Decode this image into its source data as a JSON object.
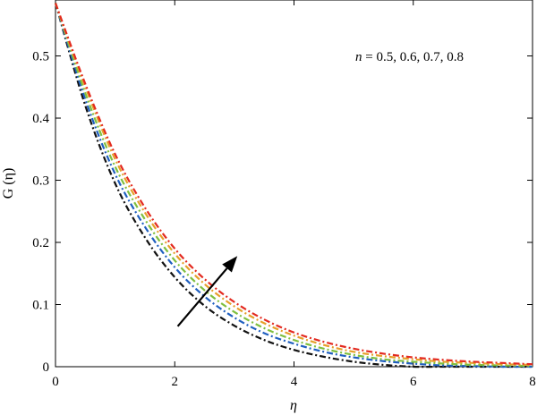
{
  "chart_data": {
    "type": "line",
    "title": "",
    "xlabel": "η",
    "ylabel": "G (η)",
    "xlim": [
      0,
      8
    ],
    "ylim": [
      0,
      0.59
    ],
    "xticks": [
      0,
      2,
      4,
      6,
      8
    ],
    "yticks": [
      0,
      0.1,
      0.2,
      0.3,
      0.4,
      0.5
    ],
    "xtick_labels": [
      "0",
      "2",
      "4",
      "6",
      "8"
    ],
    "ytick_labels": [
      "0",
      "0.1",
      "0.2",
      "0.3",
      "0.4",
      "0.5"
    ],
    "grid": false,
    "legend": "none",
    "annotation": {
      "text_var": "n",
      "text_rest": " = 0.5, 0.6, 0.7, 0.8"
    },
    "arrow": {
      "from": [
        2.05,
        0.065
      ],
      "to": [
        3.05,
        0.178
      ]
    },
    "x": [
      0,
      0.5,
      1,
      1.5,
      2,
      2.5,
      3,
      3.5,
      4,
      4.5,
      5,
      5.5,
      6,
      6.5,
      7,
      7.5,
      8
    ],
    "series": [
      {
        "color": "#111111",
        "dash": "7 3 2 3",
        "values": [
          0.585,
          0.42,
          0.295,
          0.208,
          0.144,
          0.098,
          0.066,
          0.043,
          0.027,
          0.016,
          0.008,
          0.003,
          0.0,
          0.0,
          0.0,
          0.0,
          0.0
        ]
      },
      {
        "color": "#1f5fbf",
        "dash": "7 3 2 3",
        "values": [
          0.585,
          0.43,
          0.31,
          0.225,
          0.16,
          0.113,
          0.079,
          0.054,
          0.037,
          0.024,
          0.015,
          0.009,
          0.005,
          0.002,
          0.001,
          0.0,
          0.0
        ]
      },
      {
        "color": "#7fbf3f",
        "dash": "7 3 2 3",
        "values": [
          0.585,
          0.44,
          0.322,
          0.237,
          0.171,
          0.123,
          0.088,
          0.062,
          0.043,
          0.029,
          0.019,
          0.012,
          0.008,
          0.005,
          0.003,
          0.002,
          0.001
        ]
      },
      {
        "color": "#e6a02a",
        "dash": "7 3 2 3",
        "values": [
          0.585,
          0.45,
          0.334,
          0.248,
          0.182,
          0.133,
          0.097,
          0.07,
          0.05,
          0.035,
          0.024,
          0.017,
          0.012,
          0.008,
          0.006,
          0.004,
          0.003
        ]
      },
      {
        "color": "#e32a1f",
        "dash": "7 3 2 3",
        "values": [
          0.585,
          0.455,
          0.342,
          0.256,
          0.19,
          0.141,
          0.104,
          0.076,
          0.055,
          0.04,
          0.029,
          0.021,
          0.015,
          0.011,
          0.008,
          0.006,
          0.004
        ]
      }
    ]
  }
}
